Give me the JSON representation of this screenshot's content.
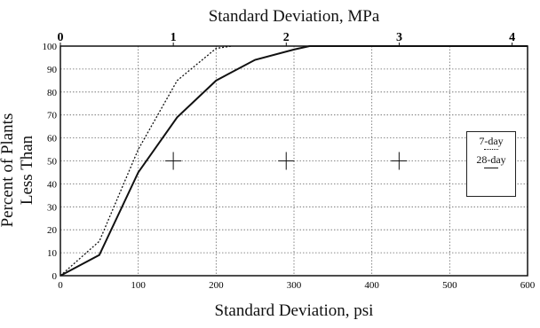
{
  "chart_data": {
    "type": "line",
    "xlabel": "Standard Deviation, psi",
    "x2label": "Standard Deviation, MPa",
    "ylabel": "Percent of Plants Less Than",
    "xlim": [
      0,
      600
    ],
    "ylim": [
      0,
      100
    ],
    "x_ticks": [
      "0",
      "100",
      "200",
      "300",
      "400",
      "500",
      "600"
    ],
    "x2_ticks": [
      "0",
      "1",
      "2",
      "3",
      "4"
    ],
    "y_ticks": [
      "0",
      "10",
      "20",
      "30",
      "40",
      "50",
      "60",
      "70",
      "80",
      "90",
      "100"
    ],
    "grid": true,
    "legend_position": "right",
    "series": [
      {
        "name": "7-day",
        "style": "dotted",
        "x": [
          0,
          50,
          100,
          150,
          200,
          220
        ],
        "y": [
          0,
          15,
          55,
          85,
          99,
          100
        ]
      },
      {
        "name": "28-day",
        "style": "solid",
        "x": [
          0,
          50,
          100,
          150,
          200,
          250,
          300,
          320,
          600
        ],
        "y": [
          0,
          9,
          45,
          69,
          85,
          94,
          98.5,
          100,
          100
        ]
      }
    ],
    "markers": [
      {
        "x": 145,
        "y": 50
      },
      {
        "x": 290,
        "y": 50
      },
      {
        "x": 435,
        "y": 50
      }
    ]
  }
}
